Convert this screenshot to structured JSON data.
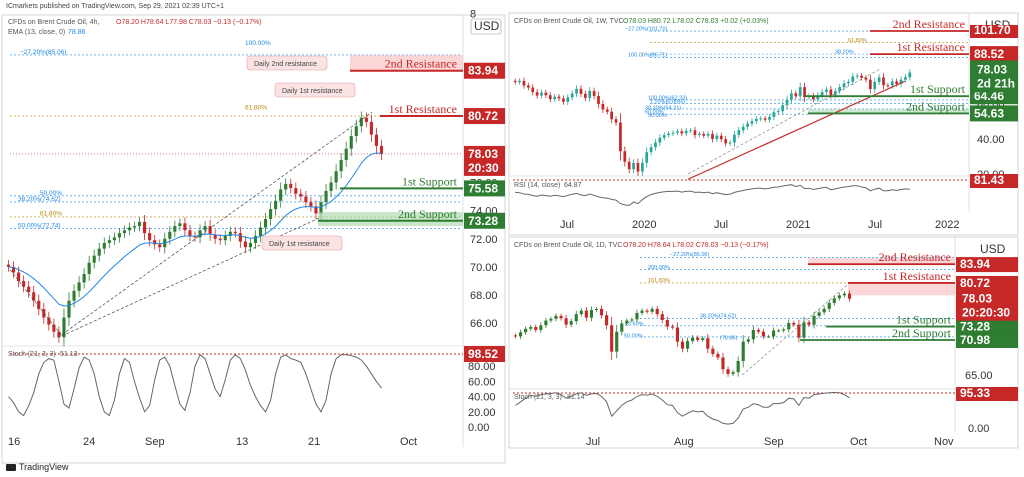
{
  "credit": "ICmarkets published on TradingView.com, Sep 29, 2021 02:39 UTC+1",
  "tradingview": "TradingView",
  "colors": {
    "resistance": "#c62828",
    "support": "#2e7d32",
    "price": "#c62828",
    "rsi_ref": "#c62828",
    "candle_up": "#26a69a",
    "candle_up_main": "#2e7d32",
    "candle_down": "#c62828",
    "ema": "#1e88e5",
    "osc": "#666666",
    "fib": "#1e88e5",
    "fib_gold": "#b8860b"
  },
  "chart_data": [
    {
      "type": "candlestick",
      "header": "CFDs on Brent Crude Oil, 4h,",
      "ohlc": "O78.20 H78.64 L77.98 C78.03 −0.13 (−0.17%)",
      "ema_label": "EMA (13, close, 0)",
      "ema_value": "78.86",
      "currency": "USD",
      "y_ticks": [
        "8",
        "76.00",
        "74.00",
        "72.00",
        "70.00",
        "68.00",
        "66.00"
      ],
      "x_ticks": [
        "16",
        "24",
        "Sep",
        "13",
        "21",
        "Oct"
      ],
      "closes": [
        70.0,
        69.6,
        69.0,
        68.6,
        68.2,
        67.6,
        67.0,
        66.4,
        65.9,
        65.4,
        65.0,
        66.4,
        67.6,
        68.3,
        68.9,
        69.5,
        70.3,
        70.8,
        71.3,
        71.7,
        71.9,
        72.1,
        72.4,
        72.6,
        72.8,
        72.9,
        73.2,
        72.4,
        71.9,
        71.6,
        71.4,
        72.0,
        72.5,
        72.9,
        73.1,
        72.6,
        72.2,
        72.1,
        72.6,
        72.9,
        72.3,
        72.0,
        71.9,
        72.2,
        72.5,
        72.4,
        71.8,
        71.4,
        71.7,
        72.2,
        72.8,
        73.4,
        74.1,
        74.7,
        75.5,
        75.9,
        75.6,
        75.2,
        75.0,
        74.6,
        74.3,
        73.8,
        74.6,
        75.4,
        76.0,
        76.8,
        77.6,
        78.4,
        79.3,
        80.0,
        80.6,
        80.3,
        79.4,
        78.6,
        78.03
      ],
      "levels": [
        {
          "label": "2nd Resistance",
          "value": "83.94",
          "kind": "resistance"
        },
        {
          "label": "1st Resistance",
          "value": "80.72",
          "kind": "resistance"
        },
        {
          "label": "1st Support",
          "value": "75.58",
          "kind": "support"
        },
        {
          "label": "2nd Support",
          "value": "73.28",
          "kind": "support"
        }
      ],
      "price_tag": {
        "value": "78.03",
        "timer": "20:30"
      },
      "fib_labels": [
        "100.00%",
        "−27.20%(85.06)",
        "61.80%",
        "50.00%",
        "38.20%(74.62)",
        "61.80%",
        "50.00%(72.74)"
      ],
      "notes": [
        "Daily 2nd resistance",
        "Daily 1st resistance",
        "Daily 1st resistance"
      ],
      "oscillator": {
        "label": "Stoch (21, 3, 3)",
        "value": "51.13",
        "ticks": [
          "80.00",
          "60.00",
          "40.00",
          "20.00",
          "0.00"
        ],
        "ref_tag": "98.52",
        "values": [
          40,
          32,
          20,
          15,
          28,
          45,
          70,
          85,
          90,
          88,
          60,
          30,
          25,
          50,
          78,
          92,
          88,
          70,
          40,
          20,
          15,
          35,
          70,
          90,
          85,
          60,
          38,
          20,
          28,
          62,
          88,
          92,
          80,
          55,
          30,
          22,
          45,
          80,
          95,
          90,
          70,
          50,
          40,
          62,
          88,
          95,
          90,
          75,
          55,
          40,
          28,
          20,
          35,
          70,
          92,
          95,
          90,
          88,
          85,
          70,
          50,
          30,
          20,
          35,
          70,
          90,
          95,
          95,
          94,
          92,
          88,
          80,
          70,
          60,
          51
        ]
      }
    },
    {
      "type": "candlestick",
      "header": "CFDs on Brent Crude Oil, 1W, TVC",
      "ohlc": "O78.03 H80.72 L78.02 C78.03 +0.02 (+0.03%)",
      "currency": "USD",
      "y_ticks": [
        "60.00",
        "40.00",
        "20.00"
      ],
      "x_ticks": [
        "Jul",
        "2020",
        "Jul",
        "2021",
        "Jul",
        "2022"
      ],
      "closes": [
        72.5,
        73.2,
        70.6,
        69.4,
        66.8,
        64.8,
        66.5,
        65.0,
        62.8,
        64.2,
        63.2,
        61.3,
        63.8,
        66.0,
        68.7,
        65.8,
        63.5,
        67.4,
        64.6,
        60.0,
        56.9,
        55.6,
        51.3,
        49.4,
        33.0,
        27.0,
        22.7,
        26.3,
        21.4,
        26.4,
        32.5,
        35.3,
        38.0,
        40.7,
        42.2,
        43.1,
        43.6,
        44.4,
        43.2,
        44.7,
        45.0,
        42.3,
        42.9,
        41.9,
        42.9,
        40.0,
        41.9,
        39.9,
        37.5,
        38.0,
        42.4,
        45.0,
        47.0,
        48.8,
        50.2,
        51.5,
        51.8,
        51.0,
        52.6,
        55.3,
        55.9,
        59.3,
        62.4,
        66.1,
        64.4,
        69.6,
        63.9,
        64.6,
        62.8,
        64.9,
        66.8,
        68.3,
        65.1,
        67.4,
        69.6,
        71.9,
        72.7,
        75.7,
        76.2,
        75.0,
        73.9,
        68.6,
        72.6,
        75.2,
        70.7,
        70.6,
        72.9,
        71.5,
        73.9,
        75.3,
        78.0
      ],
      "levels": [
        {
          "label": "2nd Resistance",
          "value": "101.70",
          "kind": "resistance"
        },
        {
          "label": "1st Resistance",
          "value": "88.52",
          "kind": "resistance"
        },
        {
          "label": "1st Support",
          "value": "64.46",
          "kind": "support"
        },
        {
          "label": "2nd Support",
          "value": "54.63",
          "kind": "support"
        }
      ],
      "price_tag": {
        "value": "78.03",
        "timer": "2d 21h"
      },
      "fib_labels": [
        "−27.20%(101.70)",
        "61.80%",
        "38.20%",
        "100.00%(86.71)",
        "100.00%(62.33)",
        "1.20%(5.00%)",
        "38.20%(54.21)",
        "60.00%",
        "50.00%"
      ],
      "oscillator": {
        "label": "RSI (14, close)",
        "value": "64.87",
        "ref_tag": "81.43",
        "values": [
          55,
          54,
          50,
          49,
          45,
          43,
          47,
          45,
          43,
          46,
          44,
          42,
          46,
          49,
          52,
          47,
          45,
          50,
          46,
          41,
          38,
          37,
          33,
          31,
          20,
          16,
          14,
          25,
          20,
          32,
          42,
          48,
          52,
          55,
          57,
          58,
          58,
          59,
          56,
          58,
          59,
          55,
          56,
          54,
          56,
          51,
          54,
          51,
          48,
          49,
          55,
          58,
          61,
          64,
          66,
          68,
          68,
          66,
          68,
          71,
          72,
          75,
          77,
          79,
          73,
          77,
          67,
          68,
          64,
          67,
          69,
          71,
          63,
          66,
          69,
          72,
          73,
          76,
          76,
          72,
          69,
          60,
          65,
          68,
          60,
          60,
          63,
          61,
          64,
          66,
          65
        ]
      }
    },
    {
      "type": "candlestick",
      "header": "CFDs on Brent Crude Oil, 1D, TVC",
      "ohlc": "O78.20 H78.64 L78.02 C78.03 −0.13 (−0.17%)",
      "currency": "USD",
      "y_ticks": [
        "65.00",
        "0.00"
      ],
      "x_ticks": [
        "Jul",
        "Aug",
        "Sep",
        "Oct",
        "Nov"
      ],
      "closes": [
        71.6,
        72.3,
        72.9,
        73.2,
        72.7,
        73.5,
        74.3,
        74.6,
        75.1,
        74.7,
        73.6,
        74.2,
        75.4,
        76.0,
        74.8,
        76.1,
        76.3,
        75.2,
        73.5,
        69.0,
        72.4,
        73.8,
        74.3,
        74.5,
        75.6,
        76.0,
        75.8,
        76.3,
        75.4,
        74.4,
        73.3,
        73.1,
        70.7,
        69.5,
        70.8,
        71.4,
        71.0,
        71.3,
        69.5,
        68.6,
        68.0,
        66.0,
        65.2,
        65.5,
        67.4,
        70.7,
        71.1,
        72.7,
        72.4,
        71.6,
        71.6,
        72.6,
        72.6,
        72.8,
        73.9,
        73.6,
        71.4,
        74.0,
        73.6,
        75.1,
        75.7,
        76.3,
        77.3,
        78.1,
        78.6,
        78.9,
        78.03
      ],
      "levels": [
        {
          "label": "2nd Resistance",
          "value": "83.94",
          "kind": "resistance"
        },
        {
          "label": "1st Resistance",
          "value": "80.72",
          "kind": "resistance"
        },
        {
          "label": "1st Support",
          "value": "73.28",
          "kind": "support"
        },
        {
          "label": "2nd Support",
          "value": "70.98",
          "kind": "support"
        }
      ],
      "price_tag": {
        "value": "78.03",
        "timer": "20:20:30"
      },
      "fib_labels": [
        "−27.20%(85.06)",
        "200.00%",
        "161.80%",
        "38.20%(74.62)",
        "23.60%",
        "50.00%",
        "(70.86)"
      ],
      "oscillator": {
        "label": "Stoch (21, 3, 3)",
        "value": "81.14",
        "ref_tag": "95.33",
        "values": [
          60,
          70,
          80,
          88,
          85,
          90,
          92,
          93,
          95,
          90,
          80,
          85,
          92,
          95,
          88,
          92,
          93,
          85,
          70,
          30,
          45,
          60,
          70,
          75,
          85,
          90,
          88,
          92,
          85,
          75,
          62,
          60,
          40,
          30,
          38,
          45,
          42,
          44,
          30,
          22,
          18,
          10,
          8,
          10,
          25,
          50,
          55,
          65,
          62,
          55,
          55,
          65,
          65,
          68,
          80,
          78,
          60,
          82,
          80,
          90,
          92,
          94,
          95,
          96,
          95,
          90,
          81
        ]
      }
    }
  ]
}
